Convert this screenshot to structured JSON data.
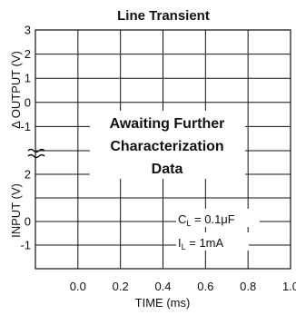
{
  "chart_data": {
    "type": "line",
    "title": "Line Transient",
    "xlabel": "TIME (ms)",
    "xlim": [
      -0.2,
      1.0
    ],
    "x_ticks": [
      "0.0",
      "0.2",
      "0.4",
      "0.6",
      "0.8",
      "1.0"
    ],
    "top_panel": {
      "ylabel": "Δ OUTPUT (V)",
      "ylim": [
        -2,
        3
      ],
      "y_ticks": [
        "3",
        "2",
        "1",
        "0",
        "-1"
      ]
    },
    "bottom_panel": {
      "ylabel": "INPUT (V)",
      "ylim": [
        -2,
        3
      ],
      "y_ticks": [
        "2",
        "0",
        "-1"
      ]
    },
    "series": [],
    "grid": true,
    "annotations": {
      "center_note": [
        "Awaiting Further",
        "Characterization",
        "Data"
      ],
      "cl": {
        "label": "C",
        "subscript": "L",
        "value": " = 0.1μF"
      },
      "il": {
        "label": "I",
        "subscript": "L",
        "value": " = 1mA"
      }
    }
  }
}
